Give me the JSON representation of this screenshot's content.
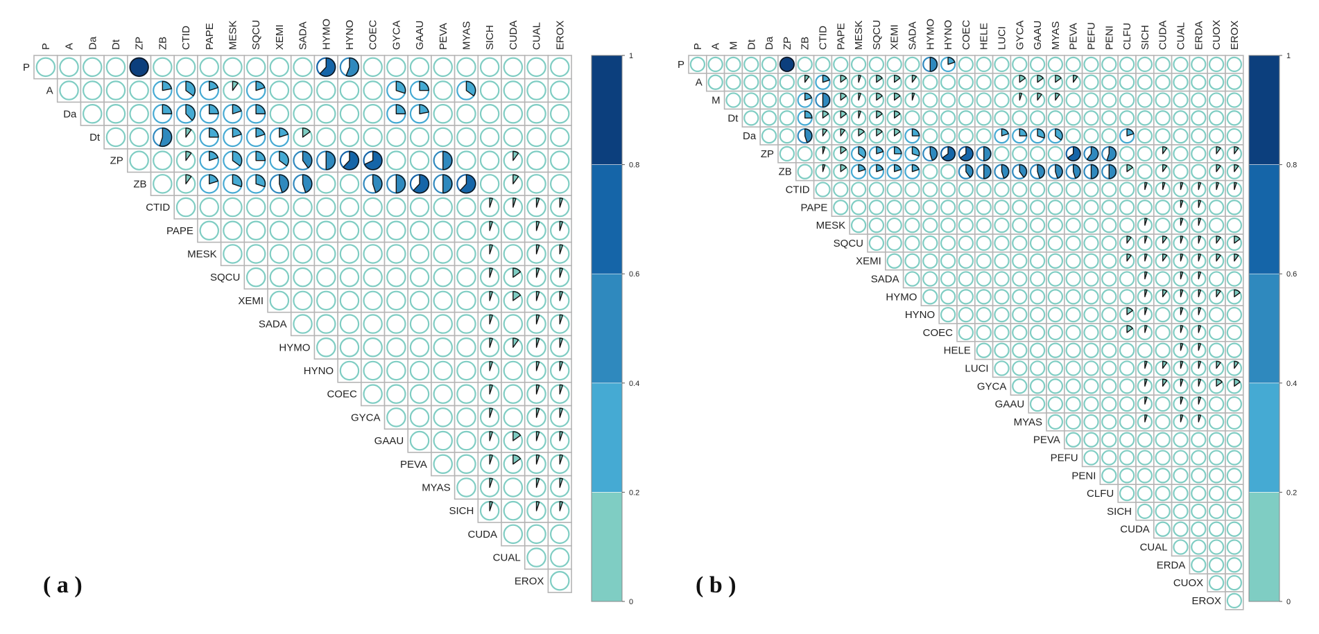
{
  "chart_data": [
    {
      "type": "heatmap",
      "panel_label": "( a )",
      "variables": [
        "P",
        "A",
        "Da",
        "Dt",
        "ZP",
        "ZB",
        "CTID",
        "PAPE",
        "MESK",
        "SQCU",
        "XEMI",
        "SADA",
        "HYMO",
        "HYNO",
        "COEC",
        "GYCA",
        "GAAU",
        "PEVA",
        "MYAS",
        "SICH",
        "CUDA",
        "CUAL",
        "EROX"
      ],
      "colorbar": {
        "min": 0,
        "max": 1,
        "ticks": [
          "0",
          "0.2",
          "0.4",
          "0.6",
          "0.8",
          "1"
        ]
      },
      "colors": [
        "#7fcdc3",
        "#45aad3",
        "#2f89be",
        "#1565a8",
        "#0c3f7d"
      ],
      "values": [
        [
          "P",
          "ZP",
          1.0
        ],
        [
          "P",
          "HYMO",
          0.62
        ],
        [
          "P",
          "HYNO",
          0.56
        ],
        [
          "A",
          "ZB",
          0.22
        ],
        [
          "A",
          "CTID",
          0.35
        ],
        [
          "A",
          "PAPE",
          0.2
        ],
        [
          "A",
          "MESK",
          0.1
        ],
        [
          "A",
          "SQCU",
          0.2
        ],
        [
          "A",
          "GYCA",
          0.3
        ],
        [
          "A",
          "GAAU",
          0.25
        ],
        [
          "A",
          "MYAS",
          0.35
        ],
        [
          "Da",
          "ZB",
          0.25
        ],
        [
          "Da",
          "CTID",
          0.38
        ],
        [
          "Da",
          "PAPE",
          0.25
        ],
        [
          "Da",
          "MESK",
          0.2
        ],
        [
          "Da",
          "SQCU",
          0.25
        ],
        [
          "Da",
          "GYCA",
          0.25
        ],
        [
          "Da",
          "GAAU",
          0.22
        ],
        [
          "Dt",
          "ZB",
          0.55
        ],
        [
          "Dt",
          "CTID",
          0.1
        ],
        [
          "Dt",
          "PAPE",
          0.25
        ],
        [
          "Dt",
          "MESK",
          0.2
        ],
        [
          "Dt",
          "SQCU",
          0.2
        ],
        [
          "Dt",
          "XEMI",
          0.2
        ],
        [
          "Dt",
          "SADA",
          0.15
        ],
        [
          "ZP",
          "CTID",
          0.1
        ],
        [
          "ZP",
          "PAPE",
          0.2
        ],
        [
          "ZP",
          "MESK",
          0.35
        ],
        [
          "ZP",
          "SQCU",
          0.25
        ],
        [
          "ZP",
          "XEMI",
          0.35
        ],
        [
          "ZP",
          "SADA",
          0.4
        ],
        [
          "ZP",
          "HYMO",
          0.5
        ],
        [
          "ZP",
          "HYNO",
          0.62
        ],
        [
          "ZP",
          "COEC",
          0.68
        ],
        [
          "ZP",
          "PEVA",
          0.5
        ],
        [
          "ZP",
          "CUDA",
          0.1
        ],
        [
          "ZB",
          "CTID",
          0.1
        ],
        [
          "ZB",
          "PAPE",
          0.2
        ],
        [
          "ZB",
          "MESK",
          0.3
        ],
        [
          "ZB",
          "SQCU",
          0.3
        ],
        [
          "ZB",
          "XEMI",
          0.45
        ],
        [
          "ZB",
          "SADA",
          0.45
        ],
        [
          "ZB",
          "COEC",
          0.45
        ],
        [
          "ZB",
          "GYCA",
          0.5
        ],
        [
          "ZB",
          "GAAU",
          0.62
        ],
        [
          "ZB",
          "PEVA",
          0.5
        ],
        [
          "ZB",
          "MYAS",
          0.62
        ],
        [
          "ZB",
          "CUDA",
          0.1
        ],
        [
          "CTID",
          "SICH",
          0.05
        ],
        [
          "CTID",
          "CUDA",
          0.05
        ],
        [
          "CTID",
          "CUAL",
          0.05
        ],
        [
          "CTID",
          "EROX",
          0.05
        ],
        [
          "PAPE",
          "SICH",
          0.05
        ],
        [
          "PAPE",
          "CUAL",
          0.05
        ],
        [
          "PAPE",
          "EROX",
          0.05
        ],
        [
          "MESK",
          "SICH",
          0.05
        ],
        [
          "MESK",
          "CUAL",
          0.05
        ],
        [
          "MESK",
          "EROX",
          0.05
        ],
        [
          "SQCU",
          "SICH",
          0.05
        ],
        [
          "SQCU",
          "CUDA",
          0.15
        ],
        [
          "SQCU",
          "CUAL",
          0.05
        ],
        [
          "SQCU",
          "EROX",
          0.05
        ],
        [
          "XEMI",
          "SICH",
          0.05
        ],
        [
          "XEMI",
          "CUDA",
          0.15
        ],
        [
          "XEMI",
          "CUAL",
          0.05
        ],
        [
          "XEMI",
          "EROX",
          0.05
        ],
        [
          "SADA",
          "SICH",
          0.05
        ],
        [
          "SADA",
          "CUAL",
          0.05
        ],
        [
          "SADA",
          "EROX",
          0.05
        ],
        [
          "HYMO",
          "SICH",
          0.05
        ],
        [
          "HYMO",
          "CUDA",
          0.1
        ],
        [
          "HYMO",
          "CUAL",
          0.05
        ],
        [
          "HYMO",
          "EROX",
          0.05
        ],
        [
          "HYNO",
          "SICH",
          0.05
        ],
        [
          "HYNO",
          "CUAL",
          0.05
        ],
        [
          "HYNO",
          "EROX",
          0.05
        ],
        [
          "COEC",
          "SICH",
          0.05
        ],
        [
          "COEC",
          "CUAL",
          0.05
        ],
        [
          "COEC",
          "EROX",
          0.05
        ],
        [
          "GYCA",
          "SICH",
          0.05
        ],
        [
          "GYCA",
          "CUAL",
          0.05
        ],
        [
          "GYCA",
          "EROX",
          0.05
        ],
        [
          "GAAU",
          "SICH",
          0.05
        ],
        [
          "GAAU",
          "CUDA",
          0.15
        ],
        [
          "GAAU",
          "CUAL",
          0.05
        ],
        [
          "GAAU",
          "EROX",
          0.05
        ],
        [
          "PEVA",
          "SICH",
          0.05
        ],
        [
          "PEVA",
          "CUDA",
          0.15
        ],
        [
          "PEVA",
          "CUAL",
          0.05
        ],
        [
          "PEVA",
          "EROX",
          0.05
        ],
        [
          "MYAS",
          "SICH",
          0.05
        ],
        [
          "MYAS",
          "CUAL",
          0.05
        ],
        [
          "MYAS",
          "EROX",
          0.05
        ],
        [
          "SICH",
          "SICH",
          0.05
        ],
        [
          "SICH",
          "CUAL",
          0.05
        ],
        [
          "SICH",
          "EROX",
          0.05
        ]
      ]
    },
    {
      "type": "heatmap",
      "panel_label": "( b )",
      "variables": [
        "P",
        "A",
        "M",
        "Dt",
        "Da",
        "ZP",
        "ZB",
        "CTID",
        "PAPE",
        "MESK",
        "SQCU",
        "XEMI",
        "SADA",
        "HYMO",
        "HYNO",
        "COEC",
        "HELE",
        "LUCI",
        "GYCA",
        "GAAU",
        "MYAS",
        "PEVA",
        "PEFU",
        "PENI",
        "CLFU",
        "SICH",
        "CUDA",
        "CUAL",
        "ERDA",
        "CUOX",
        "EROX"
      ],
      "colorbar": {
        "min": 0,
        "max": 1,
        "ticks": [
          "0",
          "0.2",
          "0.4",
          "0.6",
          "0.8",
          "1"
        ]
      },
      "colors": [
        "#7fcdc3",
        "#45aad3",
        "#2f89be",
        "#1565a8",
        "#0c3f7d"
      ],
      "values": [
        [
          "P",
          "ZP",
          1.0
        ],
        [
          "P",
          "HYMO",
          0.5
        ],
        [
          "P",
          "HYNO",
          0.2
        ],
        [
          "A",
          "ZB",
          0.1
        ],
        [
          "A",
          "CTID",
          0.2
        ],
        [
          "A",
          "PAPE",
          0.15
        ],
        [
          "A",
          "MESK",
          0.05
        ],
        [
          "A",
          "SQCU",
          0.15
        ],
        [
          "A",
          "XEMI",
          0.15
        ],
        [
          "A",
          "SADA",
          0.1
        ],
        [
          "A",
          "GYCA",
          0.15
        ],
        [
          "A",
          "GAAU",
          0.15
        ],
        [
          "A",
          "MYAS",
          0.15
        ],
        [
          "A",
          "PEVA",
          0.1
        ],
        [
          "M",
          "ZB",
          0.2
        ],
        [
          "M",
          "CTID",
          0.5
        ],
        [
          "M",
          "PAPE",
          0.15
        ],
        [
          "M",
          "MESK",
          0.05
        ],
        [
          "M",
          "SQCU",
          0.15
        ],
        [
          "M",
          "XEMI",
          0.15
        ],
        [
          "M",
          "SADA",
          0.05
        ],
        [
          "M",
          "GYCA",
          0.05
        ],
        [
          "M",
          "GAAU",
          0.1
        ],
        [
          "M",
          "MYAS",
          0.1
        ],
        [
          "Dt",
          "ZB",
          0.25
        ],
        [
          "Dt",
          "CTID",
          0.15
        ],
        [
          "Dt",
          "PAPE",
          0.15
        ],
        [
          "Dt",
          "MESK",
          0.05
        ],
        [
          "Dt",
          "SQCU",
          0.15
        ],
        [
          "Dt",
          "XEMI",
          0.15
        ],
        [
          "Da",
          "ZB",
          0.45
        ],
        [
          "Da",
          "CTID",
          0.1
        ],
        [
          "Da",
          "PAPE",
          0.1
        ],
        [
          "Da",
          "MESK",
          0.15
        ],
        [
          "Da",
          "SQCU",
          0.15
        ],
        [
          "Da",
          "XEMI",
          0.15
        ],
        [
          "Da",
          "SADA",
          0.25
        ],
        [
          "Da",
          "LUCI",
          0.2
        ],
        [
          "Da",
          "GYCA",
          0.25
        ],
        [
          "Da",
          "GAAU",
          0.3
        ],
        [
          "Da",
          "MYAS",
          0.35
        ],
        [
          "Da",
          "CLFU",
          0.2
        ],
        [
          "ZP",
          "CTID",
          0.05
        ],
        [
          "ZP",
          "PAPE",
          0.15
        ],
        [
          "ZP",
          "MESK",
          0.35
        ],
        [
          "ZP",
          "SQCU",
          0.2
        ],
        [
          "ZP",
          "XEMI",
          0.25
        ],
        [
          "ZP",
          "SADA",
          0.3
        ],
        [
          "ZP",
          "HYMO",
          0.45
        ],
        [
          "ZP",
          "HYNO",
          0.65
        ],
        [
          "ZP",
          "COEC",
          0.65
        ],
        [
          "ZP",
          "HELE",
          0.5
        ],
        [
          "ZP",
          "PEVA",
          0.65
        ],
        [
          "ZP",
          "PEFU",
          0.6
        ],
        [
          "ZP",
          "PENI",
          0.55
        ],
        [
          "ZP",
          "CUDA",
          0.1
        ],
        [
          "ZP",
          "CUOX",
          0.1
        ],
        [
          "ZP",
          "EROX",
          0.1
        ],
        [
          "ZB",
          "CTID",
          0.05
        ],
        [
          "ZB",
          "PAPE",
          0.15
        ],
        [
          "ZB",
          "MESK",
          0.2
        ],
        [
          "ZB",
          "SQCU",
          0.2
        ],
        [
          "ZB",
          "XEMI",
          0.2
        ],
        [
          "ZB",
          "SADA",
          0.2
        ],
        [
          "ZB",
          "COEC",
          0.4
        ],
        [
          "ZB",
          "HELE",
          0.5
        ],
        [
          "ZB",
          "LUCI",
          0.45
        ],
        [
          "ZB",
          "GYCA",
          0.4
        ],
        [
          "ZB",
          "GAAU",
          0.45
        ],
        [
          "ZB",
          "MYAS",
          0.45
        ],
        [
          "ZB",
          "PEVA",
          0.45
        ],
        [
          "ZB",
          "PEFU",
          0.5
        ],
        [
          "ZB",
          "PENI",
          0.5
        ],
        [
          "ZB",
          "CLFU",
          0.15
        ],
        [
          "ZB",
          "CUDA",
          0.1
        ],
        [
          "ZB",
          "CUOX",
          0.1
        ],
        [
          "ZB",
          "EROX",
          0.1
        ],
        [
          "CTID",
          "SICH",
          0.05
        ],
        [
          "CTID",
          "CUDA",
          0.05
        ],
        [
          "CTID",
          "CUAL",
          0.05
        ],
        [
          "CTID",
          "ERDA",
          0.05
        ],
        [
          "CTID",
          "CUOX",
          0.05
        ],
        [
          "CTID",
          "EROX",
          0.05
        ],
        [
          "PAPE",
          "CUAL",
          0.05
        ],
        [
          "PAPE",
          "ERDA",
          0.05
        ],
        [
          "MESK",
          "SICH",
          0.05
        ],
        [
          "MESK",
          "CUAL",
          0.05
        ],
        [
          "MESK",
          "ERDA",
          0.05
        ],
        [
          "SQCU",
          "CLFU",
          0.1
        ],
        [
          "SQCU",
          "SICH",
          0.05
        ],
        [
          "SQCU",
          "CUDA",
          0.1
        ],
        [
          "SQCU",
          "CUAL",
          0.05
        ],
        [
          "SQCU",
          "ERDA",
          0.05
        ],
        [
          "SQCU",
          "CUOX",
          0.1
        ],
        [
          "SQCU",
          "EROX",
          0.15
        ],
        [
          "XEMI",
          "CLFU",
          0.1
        ],
        [
          "XEMI",
          "SICH",
          0.05
        ],
        [
          "XEMI",
          "CUDA",
          0.1
        ],
        [
          "XEMI",
          "CUAL",
          0.05
        ],
        [
          "XEMI",
          "ERDA",
          0.05
        ],
        [
          "XEMI",
          "CUOX",
          0.1
        ],
        [
          "XEMI",
          "EROX",
          0.1
        ],
        [
          "SADA",
          "SICH",
          0.05
        ],
        [
          "SADA",
          "CUAL",
          0.05
        ],
        [
          "SADA",
          "ERDA",
          0.05
        ],
        [
          "HYMO",
          "SICH",
          0.05
        ],
        [
          "HYMO",
          "CUDA",
          0.1
        ],
        [
          "HYMO",
          "CUAL",
          0.05
        ],
        [
          "HYMO",
          "ERDA",
          0.05
        ],
        [
          "HYMO",
          "CUOX",
          0.1
        ],
        [
          "HYMO",
          "EROX",
          0.15
        ],
        [
          "HYNO",
          "CLFU",
          0.15
        ],
        [
          "HYNO",
          "SICH",
          0.05
        ],
        [
          "HYNO",
          "CUAL",
          0.05
        ],
        [
          "HYNO",
          "ERDA",
          0.05
        ],
        [
          "COEC",
          "CLFU",
          0.15
        ],
        [
          "COEC",
          "SICH",
          0.05
        ],
        [
          "COEC",
          "CUAL",
          0.05
        ],
        [
          "COEC",
          "ERDA",
          0.05
        ],
        [
          "HELE",
          "CUAL",
          0.05
        ],
        [
          "HELE",
          "ERDA",
          0.05
        ],
        [
          "LUCI",
          "SICH",
          0.05
        ],
        [
          "LUCI",
          "CUDA",
          0.1
        ],
        [
          "LUCI",
          "CUAL",
          0.05
        ],
        [
          "LUCI",
          "ERDA",
          0.05
        ],
        [
          "LUCI",
          "CUOX",
          0.1
        ],
        [
          "LUCI",
          "EROX",
          0.1
        ],
        [
          "GYCA",
          "SICH",
          0.05
        ],
        [
          "GYCA",
          "CUDA",
          0.1
        ],
        [
          "GYCA",
          "CUAL",
          0.05
        ],
        [
          "GYCA",
          "ERDA",
          0.05
        ],
        [
          "GYCA",
          "CUOX",
          0.15
        ],
        [
          "GYCA",
          "EROX",
          0.15
        ],
        [
          "GAAU",
          "SICH",
          0.05
        ],
        [
          "GAAU",
          "CUAL",
          0.05
        ],
        [
          "GAAU",
          "ERDA",
          0.05
        ],
        [
          "MYAS",
          "SICH",
          0.05
        ],
        [
          "MYAS",
          "CUAL",
          0.05
        ],
        [
          "MYAS",
          "ERDA",
          0.05
        ]
      ]
    }
  ]
}
